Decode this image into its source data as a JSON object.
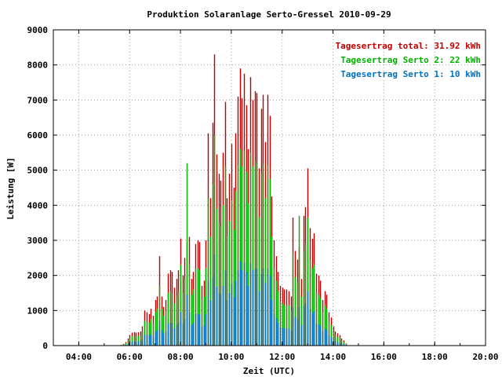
{
  "chart_data": {
    "type": "bar",
    "title": "Produktion Solaranlage Serto-Gressel 2010-09-29",
    "xlabel": "Zeit (UTC)",
    "ylabel": "Leistung [W]",
    "x_ticks": [
      "04:00",
      "06:00",
      "08:00",
      "10:00",
      "12:00",
      "14:00",
      "16:00",
      "18:00",
      "20:00"
    ],
    "y_ticks": [
      "0",
      "1000",
      "2000",
      "3000",
      "4000",
      "5000",
      "6000",
      "7000",
      "8000",
      "9000"
    ],
    "xlim_hours": [
      3.0,
      20.0
    ],
    "ylim": [
      0,
      9000
    ],
    "grid": true,
    "stacked": true,
    "legend_position": "top-right",
    "legend": [
      {
        "label": "Tagesertrag total: 31.92 kWh",
        "color": "#c00000"
      },
      {
        "label": "Tagesertrag Serto 2: 22 kWh",
        "color": "#00b000"
      },
      {
        "label": "Tagesertrag Serto 1: 10 kWh",
        "color": "#0070c0"
      }
    ],
    "series": [
      {
        "name": "Tagesertrag Serto 1: 10 kWh",
        "color": "#0070c0",
        "role": "serto1"
      },
      {
        "name": "Tagesertrag Serto 2: 22 kWh",
        "color": "#00b000",
        "role": "serto2"
      },
      {
        "name": "Tagesertrag total: 31.92 kWh",
        "color": "#c00000",
        "role": "total"
      }
    ],
    "time_start": "05:40",
    "interval_minutes": 5,
    "total": [
      20,
      50,
      100,
      200,
      300,
      370,
      380,
      370,
      380,
      400,
      550,
      1000,
      950,
      900,
      1050,
      850,
      1300,
      1400,
      2550,
      1400,
      1100,
      1300,
      2050,
      2150,
      2100,
      1650,
      1900,
      2150,
      3050,
      2000,
      2500,
      2950,
      3100,
      1900,
      2100,
      2900,
      3000,
      2950,
      1700,
      1850,
      3000,
      6050,
      4200,
      6350,
      8300,
      5450,
      4900,
      4700,
      5500,
      6950,
      4200,
      4900,
      5750,
      4500,
      6050,
      7100,
      7900,
      7050,
      7750,
      6850,
      5600,
      7650,
      7000,
      7250,
      7200,
      5050,
      6750,
      7150,
      5800,
      7150,
      6550,
      4250,
      3000,
      2550,
      2100,
      1700,
      1650,
      1600,
      1600,
      1550,
      1400,
      3650,
      2700,
      2450,
      2800,
      1900,
      3700,
      3950,
      5050,
      3350,
      3050,
      3200,
      2050,
      2000,
      1850,
      1300,
      1550,
      1450,
      950,
      800,
      550,
      400,
      350,
      300,
      200,
      150,
      60
    ],
    "serto2": [
      15,
      35,
      70,
      150,
      220,
      270,
      280,
      270,
      280,
      300,
      400,
      700,
      680,
      650,
      750,
      620,
      950,
      1050,
      1700,
      1050,
      850,
      1000,
      1500,
      1550,
      1500,
      1200,
      1400,
      1550,
      2300,
      1500,
      1900,
      5200,
      2300,
      1450,
      1600,
      2200,
      2200,
      2150,
      1300,
      1400,
      2200,
      4200,
      3100,
      4600,
      6000,
      3900,
      3500,
      3400,
      4000,
      5100,
      3100,
      3550,
      4150,
      3300,
      4400,
      5150,
      5600,
      5100,
      5550,
      4950,
      4050,
      5500,
      5100,
      5250,
      5200,
      3650,
      4900,
      5200,
      4200,
      5150,
      4750,
      3100,
      2200,
      1850,
      1550,
      1250,
      1200,
      1150,
      1150,
      1150,
      1000,
      2650,
      1950,
      1800,
      3700,
      1400,
      2700,
      2900,
      3650,
      2450,
      2200,
      2300,
      1500,
      1450,
      1350,
      950,
      1150,
      1050,
      700,
      580,
      400,
      290,
      250,
      220,
      145,
      110,
      45
    ],
    "serto1": [
      5,
      15,
      30,
      60,
      90,
      115,
      120,
      115,
      120,
      125,
      170,
      310,
      300,
      280,
      320,
      260,
      400,
      440,
      700,
      440,
      340,
      400,
      620,
      650,
      640,
      500,
      580,
      650,
      950,
      620,
      770,
      1450,
      950,
      580,
      650,
      900,
      900,
      880,
      530,
      570,
      900,
      1850,
      1280,
      1950,
      2600,
      1680,
      1500,
      1450,
      1700,
      2150,
      1300,
      1500,
      1750,
      1380,
      1850,
      2150,
      2400,
      2150,
      2350,
      2100,
      1700,
      2350,
      2150,
      2200,
      2200,
      1550,
      2050,
      2200,
      1780,
      2200,
      2000,
      1300,
      920,
      780,
      650,
      520,
      510,
      490,
      490,
      480,
      420,
      1100,
      820,
      750,
      1100,
      580,
      1120,
      1200,
      1550,
      1030,
      930,
      980,
      630,
      610,
      560,
      400,
      480,
      440,
      290,
      240,
      170,
      120,
      105,
      90,
      60,
      45,
      20
    ]
  }
}
